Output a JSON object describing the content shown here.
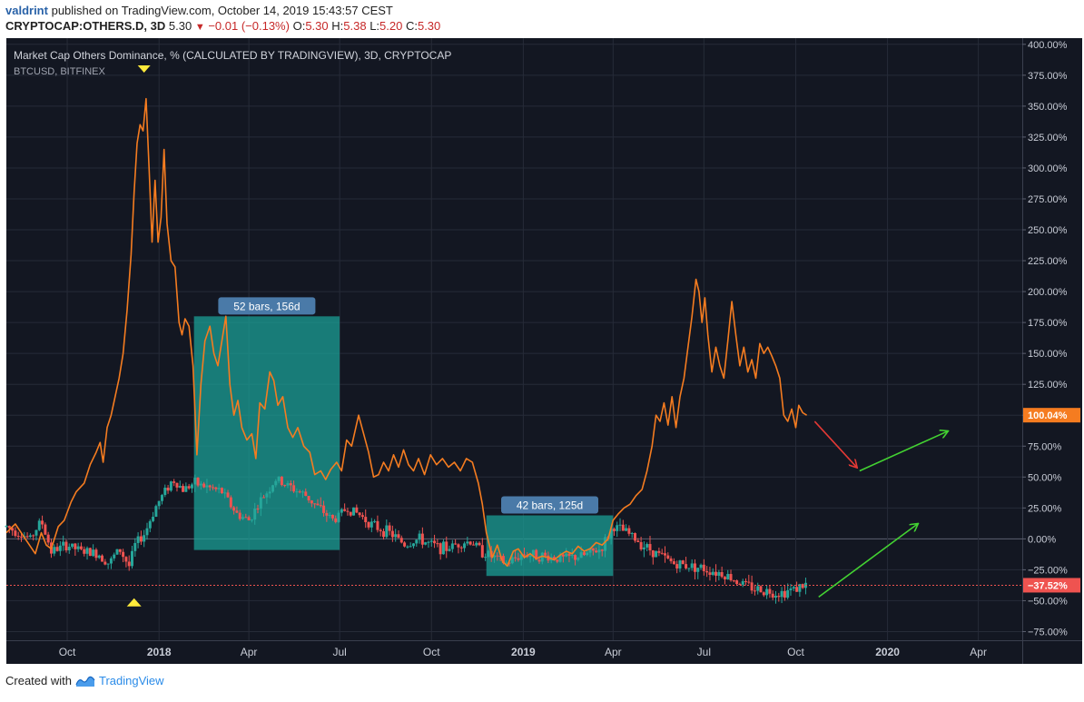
{
  "header": {
    "user": "valdrint",
    "published_text": "published on TradingView.com, October 14, 2019 15:43:57 CEST",
    "symbol": "CRYPTOCAP:OTHERS.D, 3D",
    "last": "5.30",
    "change": "−0.01 (−0.13%)",
    "ohlc": {
      "o_label": "O:",
      "o": "5.30",
      "h_label": "H:",
      "h": "5.38",
      "l_label": "L:",
      "l": "5.20",
      "c_label": "C:",
      "c": "5.30"
    }
  },
  "footer": {
    "created_with": "Created with",
    "brand": "TradingView",
    "brand_icon": "tradingview-logo-icon"
  },
  "colors": {
    "background": "#131722",
    "orange_line": "#f57c20",
    "candle_up": "#26a69a",
    "candle_down": "#ef5350",
    "box_fill": "#1aa39a",
    "label_bg": "#4a7aa8",
    "price_tag_orange": "#f57c20",
    "price_tag_red": "#ef5350",
    "arrow_red": "#e53935",
    "arrow_green": "#43d232",
    "marker_yellow": "#ffeb3b"
  },
  "chart_data": {
    "type": "line",
    "legend": [
      "Market Cap Others Dominance, % (CALCULATED BY TRADINGVIEW), 3D, CRYPTOCAP",
      "BTCUSD, BITFINEX"
    ],
    "scale": "percent",
    "y_ticks": [
      "400.00%",
      "375.00%",
      "350.00%",
      "325.00%",
      "300.00%",
      "275.00%",
      "250.00%",
      "225.00%",
      "200.00%",
      "175.00%",
      "150.00%",
      "125.00%",
      "100.00%",
      "75.00%",
      "50.00%",
      "25.00%",
      "0.00%",
      "−25.00%",
      "−50.00%",
      "−75.00%"
    ],
    "y_tick_values": [
      400,
      375,
      350,
      325,
      300,
      275,
      250,
      225,
      200,
      175,
      150,
      125,
      100,
      75,
      50,
      25,
      0,
      -25,
      -50,
      -75
    ],
    "ylim": [
      -82,
      405
    ],
    "x_ticks": [
      "Oct",
      "2018",
      "Apr",
      "Jul",
      "Oct",
      "2019",
      "Apr",
      "Jul",
      "Oct",
      "2020",
      "Apr"
    ],
    "x_tick_dates": [
      "2017-10-01",
      "2018-01-01",
      "2018-04-01",
      "2018-07-01",
      "2018-10-01",
      "2019-01-01",
      "2019-04-01",
      "2019-07-01",
      "2019-10-01",
      "2020-01-01",
      "2020-04-01"
    ],
    "x_bold_ticks": [
      "2018",
      "2019",
      "2020"
    ],
    "xlim": [
      "2017-08-01",
      "2020-05-15"
    ],
    "series": [
      {
        "name": "Market Cap Others Dominance, % (CALCULATED BY TRADINGVIEW), 3D, CRYPTOCAP",
        "kind": "line",
        "color": "#f57c20",
        "points": [
          [
            "2017-08-01",
            5
          ],
          [
            "2017-08-10",
            12
          ],
          [
            "2017-08-20",
            0
          ],
          [
            "2017-08-30",
            -12
          ],
          [
            "2017-09-05",
            5
          ],
          [
            "2017-09-10",
            -5
          ],
          [
            "2017-09-15",
            -8
          ],
          [
            "2017-09-22",
            10
          ],
          [
            "2017-09-28",
            15
          ],
          [
            "2017-10-05",
            30
          ],
          [
            "2017-10-10",
            38
          ],
          [
            "2017-10-18",
            45
          ],
          [
            "2017-10-24",
            60
          ],
          [
            "2017-10-30",
            70
          ],
          [
            "2017-11-03",
            78
          ],
          [
            "2017-11-06",
            62
          ],
          [
            "2017-11-10",
            90
          ],
          [
            "2017-11-14",
            100
          ],
          [
            "2017-11-18",
            115
          ],
          [
            "2017-11-22",
            130
          ],
          [
            "2017-11-26",
            150
          ],
          [
            "2017-11-30",
            185
          ],
          [
            "2017-12-04",
            230
          ],
          [
            "2017-12-07",
            280
          ],
          [
            "2017-12-10",
            320
          ],
          [
            "2017-12-13",
            335
          ],
          [
            "2017-12-16",
            330
          ],
          [
            "2017-12-19",
            356
          ],
          [
            "2017-12-22",
            300
          ],
          [
            "2017-12-25",
            240
          ],
          [
            "2017-12-28",
            290
          ],
          [
            "2017-12-31",
            240
          ],
          [
            "2018-01-03",
            260
          ],
          [
            "2018-01-06",
            315
          ],
          [
            "2018-01-09",
            255
          ],
          [
            "2018-01-13",
            225
          ],
          [
            "2018-01-17",
            220
          ],
          [
            "2018-01-21",
            175
          ],
          [
            "2018-01-24",
            165
          ],
          [
            "2018-01-27",
            178
          ],
          [
            "2018-01-31",
            172
          ],
          [
            "2018-02-04",
            140
          ],
          [
            "2018-02-08",
            68
          ],
          [
            "2018-02-12",
            125
          ],
          [
            "2018-02-16",
            160
          ],
          [
            "2018-02-21",
            172
          ],
          [
            "2018-02-25",
            150
          ],
          [
            "2018-03-01",
            140
          ],
          [
            "2018-03-05",
            160
          ],
          [
            "2018-03-09",
            180
          ],
          [
            "2018-03-13",
            125
          ],
          [
            "2018-03-17",
            100
          ],
          [
            "2018-03-21",
            112
          ],
          [
            "2018-03-25",
            90
          ],
          [
            "2018-03-30",
            80
          ],
          [
            "2018-04-04",
            85
          ],
          [
            "2018-04-08",
            65
          ],
          [
            "2018-04-12",
            110
          ],
          [
            "2018-04-17",
            105
          ],
          [
            "2018-04-22",
            135
          ],
          [
            "2018-04-26",
            128
          ],
          [
            "2018-04-30",
            108
          ],
          [
            "2018-05-05",
            115
          ],
          [
            "2018-05-10",
            90
          ],
          [
            "2018-05-15",
            82
          ],
          [
            "2018-05-20",
            90
          ],
          [
            "2018-05-26",
            75
          ],
          [
            "2018-06-01",
            70
          ],
          [
            "2018-06-06",
            52
          ],
          [
            "2018-06-12",
            55
          ],
          [
            "2018-06-17",
            48
          ],
          [
            "2018-06-22",
            56
          ],
          [
            "2018-06-28",
            62
          ],
          [
            "2018-07-03",
            55
          ],
          [
            "2018-07-08",
            80
          ],
          [
            "2018-07-13",
            75
          ],
          [
            "2018-07-20",
            100
          ],
          [
            "2018-07-25",
            85
          ],
          [
            "2018-07-30",
            70
          ],
          [
            "2018-08-04",
            50
          ],
          [
            "2018-08-09",
            52
          ],
          [
            "2018-08-14",
            62
          ],
          [
            "2018-08-19",
            55
          ],
          [
            "2018-08-24",
            68
          ],
          [
            "2018-08-29",
            58
          ],
          [
            "2018-09-03",
            72
          ],
          [
            "2018-09-08",
            60
          ],
          [
            "2018-09-13",
            55
          ],
          [
            "2018-09-18",
            65
          ],
          [
            "2018-09-24",
            52
          ],
          [
            "2018-09-30",
            68
          ],
          [
            "2018-10-06",
            60
          ],
          [
            "2018-10-12",
            65
          ],
          [
            "2018-10-18",
            58
          ],
          [
            "2018-10-24",
            62
          ],
          [
            "2018-10-30",
            55
          ],
          [
            "2018-11-05",
            65
          ],
          [
            "2018-11-11",
            62
          ],
          [
            "2018-11-17",
            45
          ],
          [
            "2018-11-21",
            28
          ],
          [
            "2018-11-25",
            5
          ],
          [
            "2018-12-01",
            -15
          ],
          [
            "2018-12-06",
            -5
          ],
          [
            "2018-12-11",
            -18
          ],
          [
            "2018-12-16",
            -22
          ],
          [
            "2018-12-22",
            -10
          ],
          [
            "2018-12-27",
            -8
          ],
          [
            "2019-01-02",
            -15
          ],
          [
            "2019-01-08",
            -12
          ],
          [
            "2019-01-14",
            -16
          ],
          [
            "2019-01-20",
            -14
          ],
          [
            "2019-01-26",
            -15
          ],
          [
            "2019-02-01",
            -17
          ],
          [
            "2019-02-07",
            -13
          ],
          [
            "2019-02-13",
            -10
          ],
          [
            "2019-02-19",
            -12
          ],
          [
            "2019-02-25",
            -6
          ],
          [
            "2019-03-03",
            -10
          ],
          [
            "2019-03-09",
            -8
          ],
          [
            "2019-03-15",
            -3
          ],
          [
            "2019-03-21",
            -5
          ],
          [
            "2019-03-27",
            0
          ],
          [
            "2019-04-01",
            15
          ],
          [
            "2019-04-06",
            20
          ],
          [
            "2019-04-12",
            25
          ],
          [
            "2019-04-18",
            28
          ],
          [
            "2019-04-24",
            35
          ],
          [
            "2019-04-30",
            40
          ],
          [
            "2019-05-05",
            55
          ],
          [
            "2019-05-10",
            75
          ],
          [
            "2019-05-14",
            100
          ],
          [
            "2019-05-18",
            95
          ],
          [
            "2019-05-22",
            110
          ],
          [
            "2019-05-26",
            92
          ],
          [
            "2019-05-30",
            115
          ],
          [
            "2019-06-03",
            90
          ],
          [
            "2019-06-07",
            115
          ],
          [
            "2019-06-11",
            130
          ],
          [
            "2019-06-15",
            155
          ],
          [
            "2019-06-19",
            180
          ],
          [
            "2019-06-23",
            210
          ],
          [
            "2019-06-26",
            200
          ],
          [
            "2019-06-29",
            175
          ],
          [
            "2019-07-02",
            195
          ],
          [
            "2019-07-05",
            165
          ],
          [
            "2019-07-09",
            135
          ],
          [
            "2019-07-13",
            155
          ],
          [
            "2019-07-17",
            140
          ],
          [
            "2019-07-21",
            130
          ],
          [
            "2019-07-25",
            160
          ],
          [
            "2019-07-29",
            192
          ],
          [
            "2019-08-02",
            165
          ],
          [
            "2019-08-06",
            140
          ],
          [
            "2019-08-10",
            155
          ],
          [
            "2019-08-14",
            135
          ],
          [
            "2019-08-18",
            145
          ],
          [
            "2019-08-22",
            130
          ],
          [
            "2019-08-26",
            158
          ],
          [
            "2019-08-30",
            150
          ],
          [
            "2019-09-03",
            155
          ],
          [
            "2019-09-07",
            148
          ],
          [
            "2019-09-11",
            140
          ],
          [
            "2019-09-15",
            130
          ],
          [
            "2019-09-19",
            100
          ],
          [
            "2019-09-23",
            95
          ],
          [
            "2019-09-27",
            105
          ],
          [
            "2019-10-01",
            90
          ],
          [
            "2019-10-04",
            108
          ],
          [
            "2019-10-08",
            102
          ],
          [
            "2019-10-12",
            100
          ]
        ]
      },
      {
        "name": "BTCUSD, BITFINEX",
        "kind": "candlestick",
        "points": [
          [
            "2017-08-01",
            10
          ],
          [
            "2017-08-25",
            0
          ],
          [
            "2017-09-05",
            15
          ],
          [
            "2017-09-15",
            -10
          ],
          [
            "2017-10-01",
            -5
          ],
          [
            "2017-10-15",
            -10
          ],
          [
            "2017-11-01",
            -12
          ],
          [
            "2017-11-12",
            -20
          ],
          [
            "2017-11-22",
            -8
          ],
          [
            "2017-12-02",
            -22
          ],
          [
            "2017-12-08",
            -5
          ],
          [
            "2017-12-18",
            5
          ],
          [
            "2017-12-28",
            25
          ],
          [
            "2018-01-08",
            40
          ],
          [
            "2018-01-15",
            48
          ],
          [
            "2018-01-25",
            40
          ],
          [
            "2018-02-05",
            45
          ],
          [
            "2018-02-18",
            42
          ],
          [
            "2018-03-05",
            38
          ],
          [
            "2018-03-20",
            20
          ],
          [
            "2018-04-01",
            15
          ],
          [
            "2018-04-12",
            30
          ],
          [
            "2018-04-28",
            48
          ],
          [
            "2018-05-12",
            42
          ],
          [
            "2018-05-28",
            35
          ],
          [
            "2018-06-10",
            25
          ],
          [
            "2018-06-25",
            15
          ],
          [
            "2018-07-08",
            25
          ],
          [
            "2018-07-20",
            20
          ],
          [
            "2018-08-05",
            10
          ],
          [
            "2018-08-20",
            5
          ],
          [
            "2018-09-05",
            -5
          ],
          [
            "2018-09-18",
            0
          ],
          [
            "2018-10-01",
            -5
          ],
          [
            "2018-10-15",
            -8
          ],
          [
            "2018-10-30",
            -3
          ],
          [
            "2018-11-10",
            -2
          ],
          [
            "2018-11-20",
            -10
          ],
          [
            "2018-12-02",
            -15
          ],
          [
            "2018-12-15",
            -20
          ],
          [
            "2019-01-01",
            -12
          ],
          [
            "2019-01-20",
            -14
          ],
          [
            "2019-02-10",
            -16
          ],
          [
            "2019-03-01",
            -14
          ],
          [
            "2019-03-20",
            -8
          ],
          [
            "2019-04-01",
            10
          ],
          [
            "2019-04-15",
            5
          ],
          [
            "2019-05-01",
            -5
          ],
          [
            "2019-05-15",
            -12
          ],
          [
            "2019-06-01",
            -20
          ],
          [
            "2019-06-20",
            -22
          ],
          [
            "2019-07-05",
            -25
          ],
          [
            "2019-07-20",
            -28
          ],
          [
            "2019-08-05",
            -35
          ],
          [
            "2019-08-20",
            -40
          ],
          [
            "2019-09-01",
            -42
          ],
          [
            "2019-09-15",
            -44
          ],
          [
            "2019-10-01",
            -40
          ],
          [
            "2019-10-12",
            -37
          ]
        ]
      }
    ],
    "annotations": [
      {
        "type": "range-box",
        "label": "52 bars, 156d",
        "x0": "2018-02-05",
        "x1": "2018-07-01",
        "y0": -9,
        "y1": 180
      },
      {
        "type": "range-box",
        "label": "42 bars, 125d",
        "x0": "2018-11-25",
        "x1": "2019-04-01",
        "y0": -30,
        "y1": 19
      },
      {
        "type": "price-tag",
        "text": "100.04%",
        "value": 100.04,
        "color": "#f57c20"
      },
      {
        "type": "price-tag",
        "text": "−37.52%",
        "value": -37.52,
        "color": "#ef5350"
      },
      {
        "type": "h-line",
        "value": -37.52,
        "style": "dotted",
        "color": "#ef5350"
      },
      {
        "type": "arrow",
        "color": "red",
        "from": [
          "2019-10-20",
          95
        ],
        "to": [
          "2019-12-01",
          58
        ]
      },
      {
        "type": "arrow",
        "color": "green",
        "from": [
          "2019-12-04",
          55
        ],
        "to": [
          "2020-03-01",
          87
        ]
      },
      {
        "type": "arrow",
        "color": "green",
        "from": [
          "2019-10-24",
          -47
        ],
        "to": [
          "2020-01-31",
          12
        ]
      },
      {
        "type": "marker",
        "shape": "triangle-down",
        "color": "yellow",
        "x": "2017-12-17",
        "where": "top"
      },
      {
        "type": "marker",
        "shape": "triangle-up",
        "color": "yellow",
        "x": "2017-12-07",
        "value": -51
      }
    ]
  }
}
